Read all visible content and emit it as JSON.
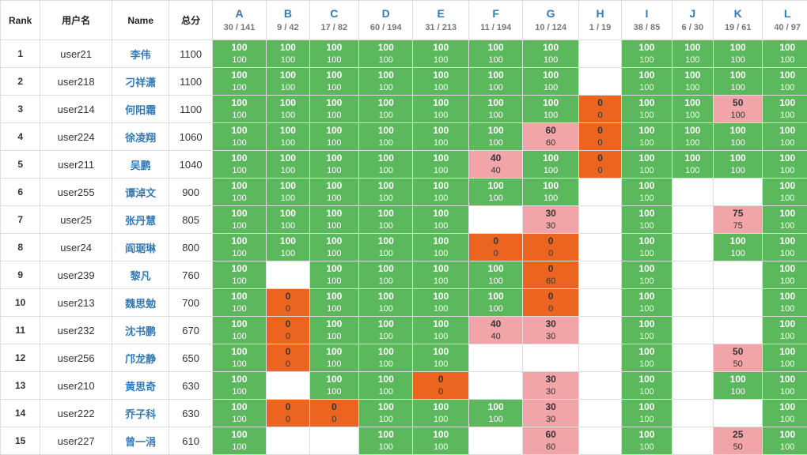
{
  "header": {
    "rank": "Rank",
    "username": "用户名",
    "name": "Name",
    "total": "总分"
  },
  "problems": [
    {
      "letter": "A",
      "ratio": "30 / 141"
    },
    {
      "letter": "B",
      "ratio": "9 / 42"
    },
    {
      "letter": "C",
      "ratio": "17 / 82"
    },
    {
      "letter": "D",
      "ratio": "60 / 194"
    },
    {
      "letter": "E",
      "ratio": "31 / 213"
    },
    {
      "letter": "F",
      "ratio": "11 / 194"
    },
    {
      "letter": "G",
      "ratio": "10 / 124"
    },
    {
      "letter": "H",
      "ratio": "1 / 19"
    },
    {
      "letter": "I",
      "ratio": "38 / 85"
    },
    {
      "letter": "J",
      "ratio": "6 / 30"
    },
    {
      "letter": "K",
      "ratio": "19 / 61"
    },
    {
      "letter": "L",
      "ratio": "40 / 97"
    }
  ],
  "colors": {
    "full": "#5cb85c",
    "partial": "#f2a5a9",
    "zero": "#ec6520",
    "link": "#337ab7"
  },
  "rows": [
    {
      "rank": "1",
      "user": "user21",
      "name": "李伟",
      "total": "1100",
      "cells": [
        [
          "100",
          "100"
        ],
        [
          "100",
          "100"
        ],
        [
          "100",
          "100"
        ],
        [
          "100",
          "100"
        ],
        [
          "100",
          "100"
        ],
        [
          "100",
          "100"
        ],
        [
          "100",
          "100"
        ],
        null,
        [
          "100",
          "100"
        ],
        [
          "100",
          "100"
        ],
        [
          "100",
          "100"
        ],
        [
          "100",
          "100"
        ]
      ]
    },
    {
      "rank": "2",
      "user": "user218",
      "name": "刁祥潇",
      "total": "1100",
      "cells": [
        [
          "100",
          "100"
        ],
        [
          "100",
          "100"
        ],
        [
          "100",
          "100"
        ],
        [
          "100",
          "100"
        ],
        [
          "100",
          "100"
        ],
        [
          "100",
          "100"
        ],
        [
          "100",
          "100"
        ],
        null,
        [
          "100",
          "100"
        ],
        [
          "100",
          "100"
        ],
        [
          "100",
          "100"
        ],
        [
          "100",
          "100"
        ]
      ]
    },
    {
      "rank": "3",
      "user": "user214",
      "name": "何阳霜",
      "total": "1100",
      "cells": [
        [
          "100",
          "100"
        ],
        [
          "100",
          "100"
        ],
        [
          "100",
          "100"
        ],
        [
          "100",
          "100"
        ],
        [
          "100",
          "100"
        ],
        [
          "100",
          "100"
        ],
        [
          "100",
          "100"
        ],
        [
          "0",
          "0"
        ],
        [
          "100",
          "100"
        ],
        [
          "100",
          "100"
        ],
        [
          "50",
          "100"
        ],
        [
          "100",
          "100"
        ]
      ]
    },
    {
      "rank": "4",
      "user": "user224",
      "name": "徐凌翔",
      "total": "1060",
      "cells": [
        [
          "100",
          "100"
        ],
        [
          "100",
          "100"
        ],
        [
          "100",
          "100"
        ],
        [
          "100",
          "100"
        ],
        [
          "100",
          "100"
        ],
        [
          "100",
          "100"
        ],
        [
          "60",
          "60"
        ],
        [
          "0",
          "0"
        ],
        [
          "100",
          "100"
        ],
        [
          "100",
          "100"
        ],
        [
          "100",
          "100"
        ],
        [
          "100",
          "100"
        ]
      ]
    },
    {
      "rank": "5",
      "user": "user211",
      "name": "吴鹏",
      "total": "1040",
      "cells": [
        [
          "100",
          "100"
        ],
        [
          "100",
          "100"
        ],
        [
          "100",
          "100"
        ],
        [
          "100",
          "100"
        ],
        [
          "100",
          "100"
        ],
        [
          "40",
          "40"
        ],
        [
          "100",
          "100"
        ],
        [
          "0",
          "0"
        ],
        [
          "100",
          "100"
        ],
        [
          "100",
          "100"
        ],
        [
          "100",
          "100"
        ],
        [
          "100",
          "100"
        ]
      ]
    },
    {
      "rank": "6",
      "user": "user255",
      "name": "谭淖文",
      "total": "900",
      "cells": [
        [
          "100",
          "100"
        ],
        [
          "100",
          "100"
        ],
        [
          "100",
          "100"
        ],
        [
          "100",
          "100"
        ],
        [
          "100",
          "100"
        ],
        [
          "100",
          "100"
        ],
        [
          "100",
          "100"
        ],
        null,
        [
          "100",
          "100"
        ],
        null,
        null,
        [
          "100",
          "100"
        ]
      ]
    },
    {
      "rank": "7",
      "user": "user25",
      "name": "张丹慧",
      "total": "805",
      "cells": [
        [
          "100",
          "100"
        ],
        [
          "100",
          "100"
        ],
        [
          "100",
          "100"
        ],
        [
          "100",
          "100"
        ],
        [
          "100",
          "100"
        ],
        null,
        [
          "30",
          "30"
        ],
        null,
        [
          "100",
          "100"
        ],
        null,
        [
          "75",
          "75"
        ],
        [
          "100",
          "100"
        ]
      ]
    },
    {
      "rank": "8",
      "user": "user24",
      "name": "阎琚琳",
      "total": "800",
      "cells": [
        [
          "100",
          "100"
        ],
        [
          "100",
          "100"
        ],
        [
          "100",
          "100"
        ],
        [
          "100",
          "100"
        ],
        [
          "100",
          "100"
        ],
        [
          "0",
          "0"
        ],
        [
          "0",
          "0"
        ],
        null,
        [
          "100",
          "100"
        ],
        null,
        [
          "100",
          "100"
        ],
        [
          "100",
          "100"
        ]
      ]
    },
    {
      "rank": "9",
      "user": "user239",
      "name": "黎凡",
      "total": "760",
      "cells": [
        [
          "100",
          "100"
        ],
        null,
        [
          "100",
          "100"
        ],
        [
          "100",
          "100"
        ],
        [
          "100",
          "100"
        ],
        [
          "100",
          "100"
        ],
        [
          "0",
          "60"
        ],
        null,
        [
          "100",
          "100"
        ],
        null,
        null,
        [
          "100",
          "100"
        ]
      ]
    },
    {
      "rank": "10",
      "user": "user213",
      "name": "魏思勉",
      "total": "700",
      "cells": [
        [
          "100",
          "100"
        ],
        [
          "0",
          "0"
        ],
        [
          "100",
          "100"
        ],
        [
          "100",
          "100"
        ],
        [
          "100",
          "100"
        ],
        [
          "100",
          "100"
        ],
        [
          "0",
          "0"
        ],
        null,
        [
          "100",
          "100"
        ],
        null,
        null,
        [
          "100",
          "100"
        ]
      ]
    },
    {
      "rank": "11",
      "user": "user232",
      "name": "沈书鹏",
      "total": "670",
      "cells": [
        [
          "100",
          "100"
        ],
        [
          "0",
          "0"
        ],
        [
          "100",
          "100"
        ],
        [
          "100",
          "100"
        ],
        [
          "100",
          "100"
        ],
        [
          "40",
          "40"
        ],
        [
          "30",
          "30"
        ],
        null,
        [
          "100",
          "100"
        ],
        null,
        null,
        [
          "100",
          "100"
        ]
      ]
    },
    {
      "rank": "12",
      "user": "user256",
      "name": "邝龙静",
      "total": "650",
      "cells": [
        [
          "100",
          "100"
        ],
        [
          "0",
          "0"
        ],
        [
          "100",
          "100"
        ],
        [
          "100",
          "100"
        ],
        [
          "100",
          "100"
        ],
        null,
        null,
        null,
        [
          "100",
          "100"
        ],
        null,
        [
          "50",
          "50"
        ],
        [
          "100",
          "100"
        ]
      ]
    },
    {
      "rank": "13",
      "user": "user210",
      "name": "黄思奇",
      "total": "630",
      "cells": [
        [
          "100",
          "100"
        ],
        null,
        [
          "100",
          "100"
        ],
        [
          "100",
          "100"
        ],
        [
          "0",
          "0"
        ],
        null,
        [
          "30",
          "30"
        ],
        null,
        [
          "100",
          "100"
        ],
        null,
        [
          "100",
          "100"
        ],
        [
          "100",
          "100"
        ]
      ]
    },
    {
      "rank": "14",
      "user": "user222",
      "name": "乔子科",
      "total": "630",
      "cells": [
        [
          "100",
          "100"
        ],
        [
          "0",
          "0"
        ],
        [
          "0",
          "0"
        ],
        [
          "100",
          "100"
        ],
        [
          "100",
          "100"
        ],
        [
          "100",
          "100"
        ],
        [
          "30",
          "30"
        ],
        null,
        [
          "100",
          "100"
        ],
        null,
        null,
        [
          "100",
          "100"
        ]
      ]
    },
    {
      "rank": "15",
      "user": "user227",
      "name": "曾一涓",
      "total": "610",
      "cells": [
        [
          "100",
          "100"
        ],
        null,
        null,
        [
          "100",
          "100"
        ],
        [
          "100",
          "100"
        ],
        null,
        [
          "60",
          "60"
        ],
        null,
        [
          "100",
          "100"
        ],
        null,
        [
          "25",
          "50"
        ],
        [
          "100",
          "100"
        ]
      ]
    }
  ]
}
